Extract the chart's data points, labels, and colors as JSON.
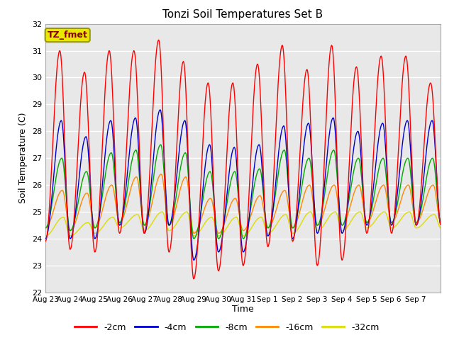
{
  "title": "Tonzi Soil Temperatures Set B",
  "xlabel": "Time",
  "ylabel": "Soil Temperature (C)",
  "ylim": [
    22.0,
    32.0
  ],
  "yticks": [
    22.0,
    23.0,
    24.0,
    25.0,
    26.0,
    27.0,
    28.0,
    29.0,
    30.0,
    31.0,
    32.0
  ],
  "series_colors": [
    "#ff0000",
    "#0000cc",
    "#00aa00",
    "#ff8800",
    "#dddd00"
  ],
  "series_labels": [
    "-2cm",
    "-4cm",
    "-8cm",
    "-16cm",
    "-32cm"
  ],
  "annotation_label": "TZ_fmet",
  "annotation_bg": "#e8e800",
  "annotation_edge": "#999900",
  "annotation_text_color": "#880000",
  "x_tick_labels": [
    "Aug 23",
    "Aug 24",
    "Aug 25",
    "Aug 26",
    "Aug 27",
    "Aug 28",
    "Aug 29",
    "Aug 30",
    "Aug 31",
    "Sep 1",
    "Sep 2",
    "Sep 3",
    "Sep 4",
    "Sep 5",
    "Sep 6",
    "Sep 7"
  ],
  "n_days": 16,
  "background_color": "#e8e8e8"
}
